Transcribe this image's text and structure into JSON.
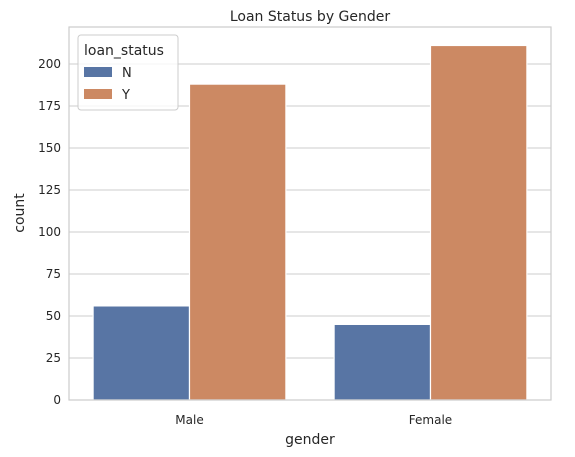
{
  "chart_data": {
    "type": "bar",
    "title": "Loan Status by Gender",
    "xlabel": "gender",
    "ylabel": "count",
    "categories": [
      "Male",
      "Female"
    ],
    "series": [
      {
        "name": "N",
        "values": [
          56,
          45
        ],
        "color": "#5875a4"
      },
      {
        "name": "Y",
        "values": [
          188,
          211
        ],
        "color": "#cc8963"
      }
    ],
    "ylim": [
      0,
      222
    ],
    "yticks": [
      0,
      25,
      50,
      75,
      100,
      125,
      150,
      175,
      200
    ],
    "grid": "horizontal",
    "legend": {
      "title": "loan_status",
      "placement": "top-left"
    }
  }
}
